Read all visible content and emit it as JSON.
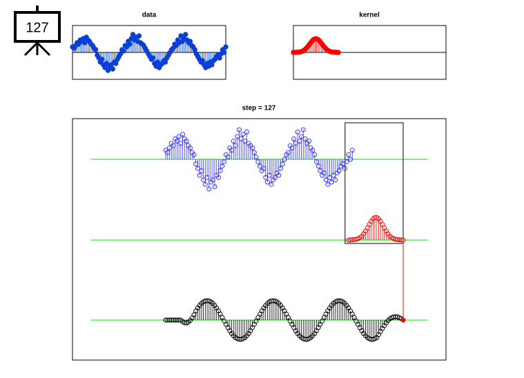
{
  "badge": "127",
  "chart_data": [
    {
      "type": "stem",
      "title": "data",
      "color": "#0b3fd6",
      "values": [
        0.4,
        0.3,
        0.5,
        0.7,
        0.6,
        0.9,
        0.8,
        1.0,
        0.7,
        1.1,
        0.9,
        0.8,
        0.6,
        0.5,
        0.3,
        0.2,
        -0.2,
        -0.4,
        -0.7,
        -0.5,
        -0.9,
        -1.1,
        -0.8,
        -1.3,
        -1.0,
        -0.9,
        -1.2,
        -0.7,
        -0.8,
        -0.5,
        -0.3,
        -0.1,
        0.2,
        0.1,
        0.5,
        0.4,
        0.8,
        0.6,
        1.0,
        1.3,
        0.9,
        1.1,
        0.8,
        1.2,
        0.7,
        0.6,
        0.5,
        0.3,
        0.1,
        -0.1,
        -0.3,
        -0.5,
        -0.4,
        -0.8,
        -1.0,
        -0.7,
        -1.1,
        -0.9,
        -0.8,
        -0.6,
        -0.7,
        -0.4,
        -0.2,
        0.0,
        0.2,
        0.3,
        0.6,
        0.5,
        0.9,
        0.7,
        1.2,
        0.8,
        1.0,
        1.3,
        0.9,
        0.7,
        0.8,
        0.5,
        0.4,
        0.2,
        -0.1,
        -0.3,
        -0.5,
        -0.7,
        -0.6,
        -0.9,
        -1.1,
        -0.8,
        -1.0,
        -0.7,
        -0.9,
        -0.6,
        -0.5,
        -0.3,
        -0.2,
        -0.4,
        -0.1,
        0.2,
        0.0,
        0.4
      ]
    },
    {
      "type": "stem",
      "title": "kernel",
      "color": "#ff0000",
      "values": [
        0.0,
        0.0,
        0.01,
        0.02,
        0.03,
        0.06,
        0.1,
        0.17,
        0.27,
        0.39,
        0.53,
        0.68,
        0.82,
        0.93,
        0.99,
        0.99,
        0.93,
        0.82,
        0.68,
        0.53,
        0.39,
        0.27,
        0.17,
        0.1,
        0.06,
        0.03,
        0.02,
        0.01,
        0.0,
        0.0
      ]
    },
    {
      "type": "convolution",
      "title": "step = 127",
      "color": "#000000",
      "signal_color": "#3333ff",
      "kernel_color": "#ff0000",
      "baseline_color": "#00dd00",
      "current_color": "#ff0000",
      "values": [
        0.0,
        0.0,
        0.0,
        0.0,
        0.0,
        0.0,
        0.0,
        0.0,
        0.0,
        -0.07,
        -0.12,
        -0.13,
        -0.09,
        -0.02,
        0.09,
        0.23,
        0.4,
        0.53,
        0.64,
        0.73,
        0.8,
        0.84,
        0.85,
        0.84,
        0.8,
        0.73,
        0.64,
        0.53,
        0.4,
        0.26,
        0.11,
        -0.04,
        -0.19,
        -0.33,
        -0.47,
        -0.59,
        -0.69,
        -0.77,
        -0.82,
        -0.85,
        -0.85,
        -0.82,
        -0.77,
        -0.69,
        -0.59,
        -0.47,
        -0.33,
        -0.19,
        -0.04,
        0.11,
        0.26,
        0.4,
        0.53,
        0.64,
        0.73,
        0.8,
        0.84,
        0.85,
        0.84,
        0.8,
        0.73,
        0.64,
        0.53,
        0.4,
        0.26,
        0.11,
        -0.04,
        -0.19,
        -0.33,
        -0.47,
        -0.59,
        -0.69,
        -0.77,
        -0.82,
        -0.85,
        -0.85,
        -0.82,
        -0.77,
        -0.69,
        -0.59,
        -0.47,
        -0.33,
        -0.19,
        -0.04,
        0.11,
        0.26,
        0.4,
        0.53,
        0.64,
        0.73,
        0.8,
        0.84,
        0.85,
        0.84,
        0.8,
        0.73,
        0.64,
        0.53,
        0.4,
        0.26,
        0.11,
        -0.04,
        -0.19,
        -0.33,
        -0.47,
        -0.59,
        -0.69,
        -0.77,
        -0.82,
        -0.85,
        -0.85,
        -0.82,
        -0.77,
        -0.64,
        -0.5,
        -0.37,
        -0.24,
        -0.12,
        -0.02,
        0.06,
        0.11,
        0.14,
        0.15,
        0.14,
        0.1,
        0.06,
        0.0
      ]
    }
  ]
}
